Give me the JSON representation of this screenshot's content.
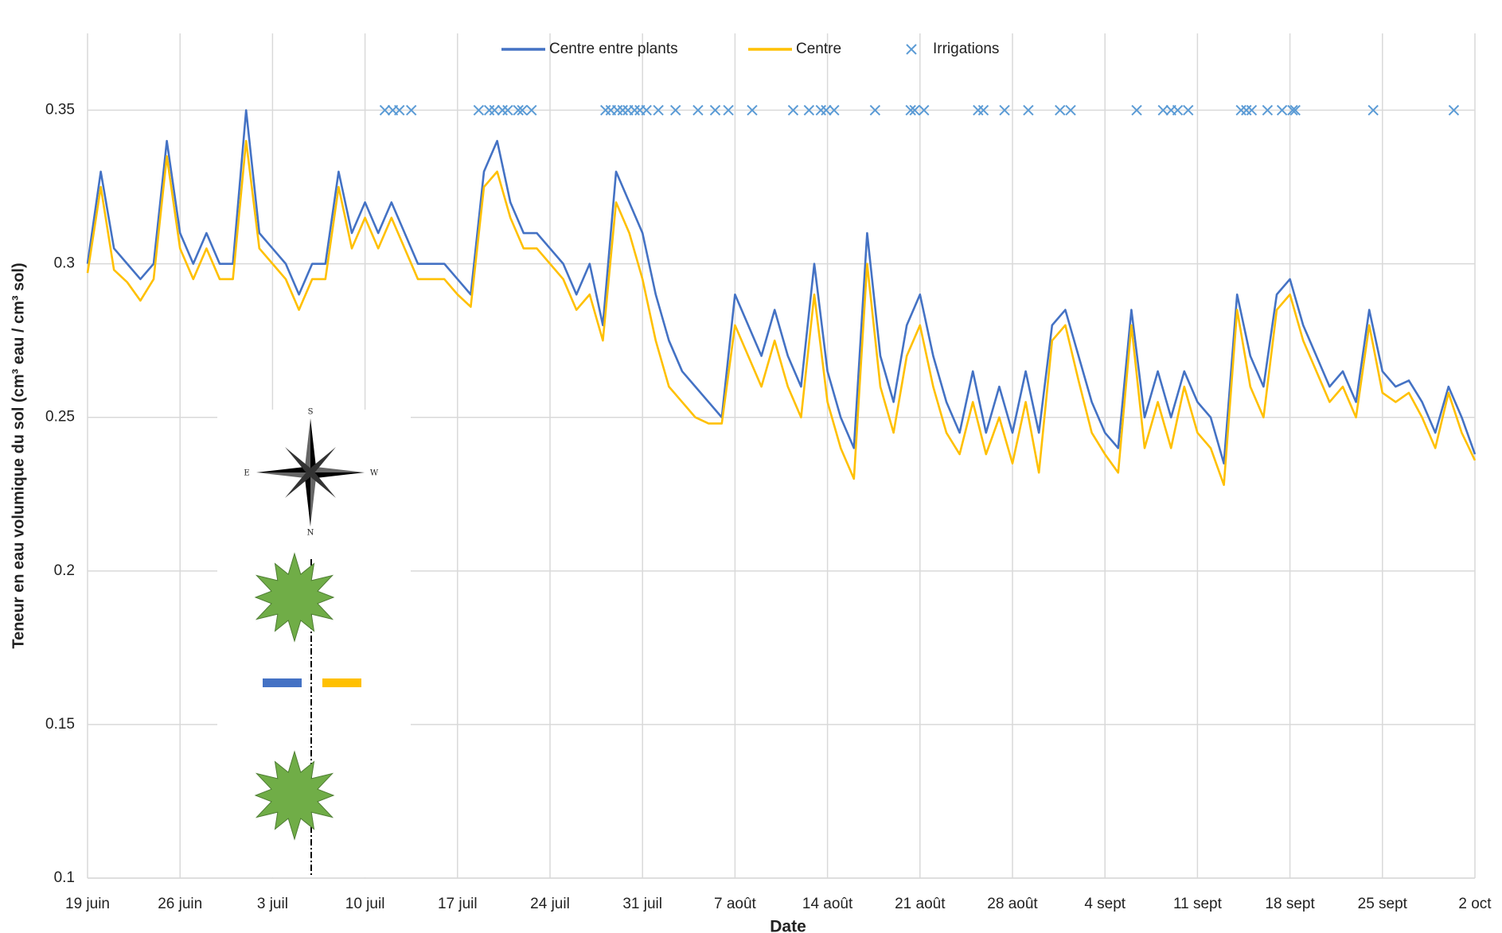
{
  "chart_data": {
    "type": "line",
    "xlabel": "Date",
    "ylabel": "Teneur en eau volumique du sol (cm³ eau / cm³ sol)",
    "x": [
      0,
      1,
      2,
      3,
      4,
      5,
      6,
      7,
      8,
      9,
      10,
      11,
      12,
      13,
      14,
      15,
      16,
      17,
      18,
      19,
      20,
      21,
      22,
      23,
      24,
      25,
      26,
      27,
      28,
      29,
      30,
      31,
      32,
      33,
      34,
      35,
      36,
      37,
      38,
      39,
      40,
      41,
      42,
      43,
      44,
      45,
      46,
      47,
      48,
      49,
      50,
      51,
      52,
      53,
      54,
      55,
      56,
      57,
      58,
      59,
      60,
      61,
      62,
      63,
      64,
      65,
      66,
      67,
      68,
      69,
      70,
      71,
      72,
      73,
      74,
      75,
      76,
      77,
      78,
      79,
      80,
      81,
      82,
      83,
      84,
      85,
      86,
      87,
      88,
      89,
      90,
      91,
      92,
      93,
      94,
      95,
      96,
      97,
      98,
      99,
      100,
      101,
      102,
      103,
      104,
      105
    ],
    "xlim": [
      0,
      105
    ],
    "xticks": [
      {
        "value": 0,
        "label": "19 juin"
      },
      {
        "value": 7,
        "label": "26 juin"
      },
      {
        "value": 14,
        "label": "3 juil"
      },
      {
        "value": 21,
        "label": "10 juil"
      },
      {
        "value": 28,
        "label": "17 juil"
      },
      {
        "value": 35,
        "label": "24 juil"
      },
      {
        "value": 42,
        "label": "31 juil"
      },
      {
        "value": 49,
        "label": "7 août"
      },
      {
        "value": 56,
        "label": "14 août"
      },
      {
        "value": 63,
        "label": "21 août"
      },
      {
        "value": 70,
        "label": "28 août"
      },
      {
        "value": 77,
        "label": "4 sept"
      },
      {
        "value": 84,
        "label": "11 sept"
      },
      {
        "value": 91,
        "label": "18 sept"
      },
      {
        "value": 98,
        "label": "25 sept"
      },
      {
        "value": 105,
        "label": "2 oct"
      }
    ],
    "ylim": [
      0.1,
      0.375
    ],
    "yticks": [
      0.1,
      0.15,
      0.2,
      0.25,
      0.3,
      0.35
    ],
    "grid": true,
    "series": [
      {
        "name": "Centre entre plants",
        "color": "#4472c4",
        "values": [
          0.3,
          0.33,
          0.305,
          0.3,
          0.295,
          0.3,
          0.34,
          0.31,
          0.3,
          0.31,
          0.3,
          0.3,
          0.35,
          0.31,
          0.305,
          0.3,
          0.29,
          0.3,
          0.3,
          0.33,
          0.31,
          0.32,
          0.31,
          0.32,
          0.31,
          0.3,
          0.3,
          0.3,
          0.295,
          0.29,
          0.33,
          0.34,
          0.32,
          0.31,
          0.31,
          0.305,
          0.3,
          0.29,
          0.3,
          0.28,
          0.33,
          0.32,
          0.31,
          0.29,
          0.275,
          0.265,
          0.26,
          0.255,
          0.25,
          0.29,
          0.28,
          0.27,
          0.285,
          0.27,
          0.26,
          0.3,
          0.265,
          0.25,
          0.24,
          0.31,
          0.27,
          0.255,
          0.28,
          0.29,
          0.27,
          0.255,
          0.245,
          0.265,
          0.245,
          0.26,
          0.245,
          0.265,
          0.245,
          0.28,
          0.285,
          0.27,
          0.255,
          0.245,
          0.24,
          0.285,
          0.25,
          0.265,
          0.25,
          0.265,
          0.255,
          0.25,
          0.235,
          0.29,
          0.27,
          0.26,
          0.29,
          0.295,
          0.28,
          0.27,
          0.26,
          0.265,
          0.255,
          0.285,
          0.265,
          0.26,
          0.262,
          0.255,
          0.245,
          0.26,
          0.25,
          0.238
        ]
      },
      {
        "name": "Centre",
        "color": "#ffc000",
        "values": [
          0.297,
          0.325,
          0.298,
          0.294,
          0.288,
          0.295,
          0.335,
          0.305,
          0.295,
          0.305,
          0.295,
          0.295,
          0.34,
          0.305,
          0.3,
          0.295,
          0.285,
          0.295,
          0.295,
          0.325,
          0.305,
          0.315,
          0.305,
          0.315,
          0.305,
          0.295,
          0.295,
          0.295,
          0.29,
          0.286,
          0.325,
          0.33,
          0.315,
          0.305,
          0.305,
          0.3,
          0.295,
          0.285,
          0.29,
          0.275,
          0.32,
          0.31,
          0.295,
          0.275,
          0.26,
          0.255,
          0.25,
          0.248,
          0.248,
          0.28,
          0.27,
          0.26,
          0.275,
          0.26,
          0.25,
          0.29,
          0.255,
          0.24,
          0.23,
          0.3,
          0.26,
          0.245,
          0.27,
          0.28,
          0.26,
          0.245,
          0.238,
          0.255,
          0.238,
          0.25,
          0.235,
          0.255,
          0.232,
          0.275,
          0.28,
          0.262,
          0.245,
          0.238,
          0.232,
          0.28,
          0.24,
          0.255,
          0.24,
          0.26,
          0.245,
          0.24,
          0.228,
          0.285,
          0.26,
          0.25,
          0.285,
          0.29,
          0.275,
          0.265,
          0.255,
          0.26,
          0.25,
          0.28,
          0.258,
          0.255,
          0.258,
          0.25,
          0.24,
          0.258,
          0.245,
          0.236
        ]
      },
      {
        "name": "Irrigations",
        "color": "#5b9bd5",
        "marker": "x",
        "x": [
          22.5,
          23.1,
          23.6,
          24.5,
          29.6,
          30.4,
          30.8,
          31.4,
          31.8,
          32.6,
          32.9,
          33.6,
          39.2,
          39.6,
          40.1,
          40.5,
          40.9,
          41.4,
          41.8,
          42.3,
          43.2,
          44.5,
          46.2,
          47.5,
          48.5,
          50.3,
          53.4,
          54.6,
          55.5,
          55.9,
          56.5,
          59.6,
          62.3,
          62.6,
          63.3,
          67.4,
          67.8,
          69.4,
          71.2,
          73.6,
          74.4,
          79.4,
          81.4,
          82.0,
          82.5,
          83.3,
          87.3,
          87.7,
          88.1,
          89.3,
          90.4,
          91.2,
          91.4,
          97.3,
          103.4
        ],
        "values": [
          0.35,
          0.35,
          0.35,
          0.35,
          0.35,
          0.35,
          0.35,
          0.35,
          0.35,
          0.35,
          0.35,
          0.35,
          0.35,
          0.35,
          0.35,
          0.35,
          0.35,
          0.35,
          0.35,
          0.35,
          0.35,
          0.35,
          0.35,
          0.35,
          0.35,
          0.35,
          0.35,
          0.35,
          0.35,
          0.35,
          0.35,
          0.35,
          0.35,
          0.35,
          0.35,
          0.35,
          0.35,
          0.35,
          0.35,
          0.35,
          0.35,
          0.35,
          0.35,
          0.35,
          0.35,
          0.35,
          0.35,
          0.35,
          0.35,
          0.35,
          0.35,
          0.35,
          0.35,
          0.35,
          0.35
        ]
      }
    ]
  },
  "inset": {
    "compass": [
      "S",
      "E",
      "W",
      "N"
    ]
  }
}
